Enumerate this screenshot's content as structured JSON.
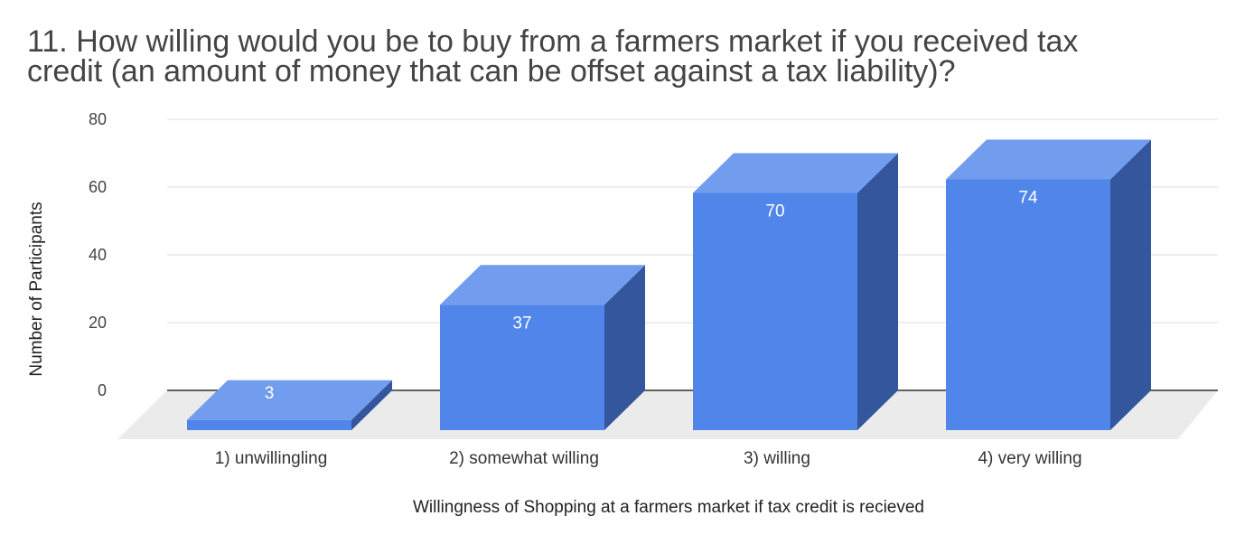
{
  "chart_data": {
    "type": "bar",
    "style": "3d",
    "title_lines": [
      "11. How willing would you be to buy from a farmers market if you received tax",
      "credit (an amount of money that can be offset against a tax liability)?"
    ],
    "categories": [
      "1) unwillingling",
      "2) somewhat willing",
      "3) willing",
      "4) very willing"
    ],
    "values": [
      3,
      37,
      70,
      74
    ],
    "data_labels": [
      "3",
      "37",
      "70",
      "74"
    ],
    "xlabel": "Willingness of Shopping at a farmers market if tax credit is recieved",
    "ylabel": "Number of Participants",
    "y_ticks": [
      0,
      20,
      40,
      60,
      80
    ],
    "ylim": [
      0,
      80
    ],
    "colors": {
      "front": "#5086EA",
      "top": "#729DEF",
      "side": "#33569C",
      "floor": "#EBEBEB",
      "grid": "#DDDDDD",
      "baseline": "#333333"
    }
  }
}
